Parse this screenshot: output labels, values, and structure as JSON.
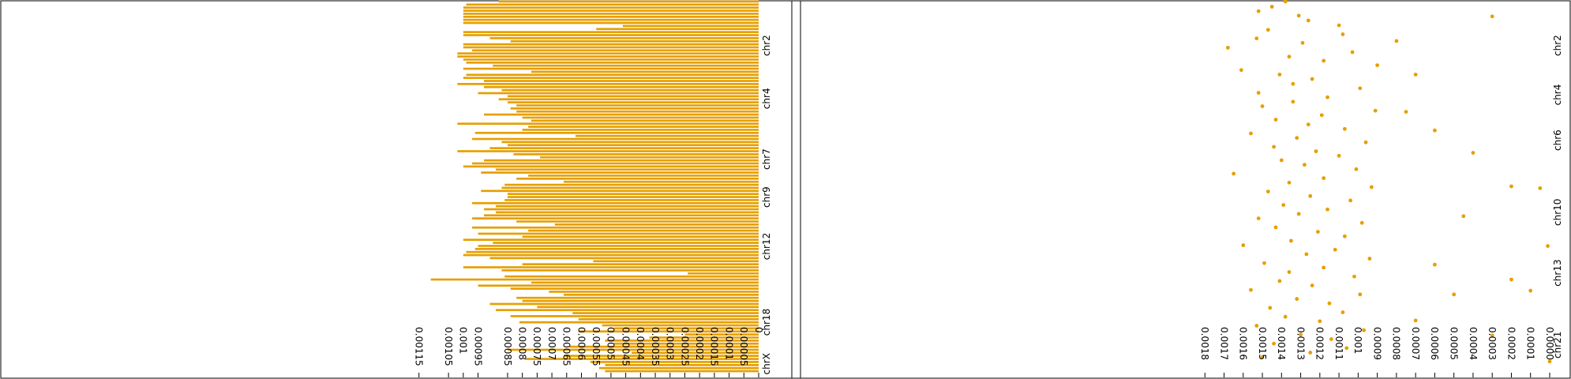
{
  "colors": {
    "accent": "#e69f00",
    "axis": "#000000",
    "background": "#ffffff"
  },
  "chart_data": [
    {
      "type": "bar",
      "orientation": "horizontal",
      "x_direction": "reversed",
      "xlabel": "",
      "ylabel": "",
      "xlim": [
        0,
        0.0012
      ],
      "xticks": [
        "0.00115",
        "0.00105",
        "0.001",
        "0.00095",
        "0.00085",
        "0.0008",
        "0.00075",
        "0.0007",
        "0.00065",
        "0.0006",
        "0.00055",
        "0.0005",
        "0.00045",
        "0.0004",
        "0.00035",
        "0.0003",
        "0.00025",
        "0.0002",
        "0.00015",
        "0.0001",
        "0.00005",
        "0"
      ],
      "xtick_values": [
        0.00115,
        0.00105,
        0.001,
        0.00095,
        0.00085,
        0.0008,
        0.00075,
        0.0007,
        0.00065,
        0.0006,
        0.00055,
        0.0005,
        0.00045,
        0.0004,
        0.00035,
        0.0003,
        0.00025,
        0.0002,
        0.00015,
        0.0001,
        5e-05,
        0
      ],
      "category_labels": [
        "chr2",
        "chr4",
        "chr7",
        "chr9",
        "chr12",
        "chr18",
        "chrX"
      ],
      "category_label_positions": [
        0.12,
        0.26,
        0.42,
        0.52,
        0.65,
        0.85,
        0.96
      ],
      "grid": false,
      "values": [
        0.00088,
        0.00099,
        0.001,
        0.001,
        0.001,
        0.001,
        0.001,
        0.001,
        0.00046,
        0.00055,
        0.001,
        0.001,
        0.00091,
        0.00084,
        0.001,
        0.001,
        0.00097,
        0.00102,
        0.00102,
        0.001,
        0.00099,
        0.0009,
        0.001,
        0.00077,
        0.00099,
        0.001,
        0.00093,
        0.00102,
        0.00093,
        0.00087,
        0.00095,
        0.00085,
        0.00088,
        0.00085,
        0.00082,
        0.00084,
        0.00082,
        0.00093,
        0.0008,
        0.00077,
        0.00102,
        0.00078,
        0.0008,
        0.00096,
        0.00062,
        0.00097,
        0.00087,
        0.00085,
        0.00091,
        0.00102,
        0.00083,
        0.00074,
        0.00093,
        0.00097,
        0.001,
        0.00089,
        0.00094,
        0.00078,
        0.00082,
        0.00066,
        0.00086,
        0.00087,
        0.00094,
        0.00085,
        0.00085,
        0.00086,
        0.00097,
        0.00089,
        0.00093,
        0.00089,
        0.00093,
        0.00097,
        0.00082,
        0.00069,
        0.00097,
        0.00078,
        0.00095,
        0.0008,
        0.001,
        0.0009,
        0.00095,
        0.00096,
        0.00099,
        0.001,
        0.00091,
        0.00056,
        0.0008,
        0.001,
        0.00087,
        0.00024,
        0.00086,
        0.00111,
        0.00077,
        0.00095,
        0.00084,
        0.00071,
        0.00066,
        0.00082,
        0.0008,
        0.00091,
        0.00075,
        0.00089,
        0.00063,
        0.00084,
        0.00061,
        0.00081,
        0.00053,
        0.00049,
        0.00061,
        0.00025,
        0.00037,
        0.00052,
        0.00049,
        0.00064,
        0.00085,
        0.00043,
        0.00066,
        0.00079,
        0.00057,
        0.00052,
        0.00054,
        0.00052
      ]
    },
    {
      "type": "scatter",
      "orientation": "horizontal",
      "x_direction": "reversed",
      "xlabel": "",
      "ylabel": "",
      "xlim": [
        0,
        0.0019
      ],
      "xticks": [
        "0.0018",
        "0.0017",
        "0.0016",
        "0.0015",
        "0.0014",
        "0.0013",
        "0.0012",
        "0.0011",
        "0.001",
        "0.0009",
        "0.0008",
        "0.0007",
        "0.0006",
        "0.0005",
        "0.0004",
        "0.0003",
        "0.0002",
        "0.0001",
        "0.0000"
      ],
      "xtick_values": [
        0.0018,
        0.0017,
        0.0016,
        0.0015,
        0.0014,
        0.0013,
        0.0012,
        0.0011,
        0.001,
        0.0009,
        0.0008,
        0.0007,
        0.0006,
        0.0005,
        0.0004,
        0.0003,
        0.0002,
        0.0001,
        0
      ],
      "category_labels": [
        "chr2",
        "chr4",
        "chr6",
        "chr10",
        "chr13",
        "chr21"
      ],
      "category_label_positions": [
        0.12,
        0.25,
        0.37,
        0.56,
        0.72,
        0.91
      ],
      "grid": false,
      "points": [
        [
          0.00138,
          0.004
        ],
        [
          0.00145,
          0.018
        ],
        [
          0.00152,
          0.03
        ],
        [
          0.00131,
          0.042
        ],
        [
          0.00126,
          0.055
        ],
        [
          0.0011,
          0.068
        ],
        [
          0.00147,
          0.08
        ],
        [
          0.00108,
          0.092
        ],
        [
          0.00153,
          0.103
        ],
        [
          0.00129,
          0.115
        ],
        [
          0.00168,
          0.128
        ],
        [
          0.00103,
          0.14
        ],
        [
          0.00136,
          0.152
        ],
        [
          0.00118,
          0.163
        ],
        [
          0.0009,
          0.175
        ],
        [
          0.00161,
          0.188
        ],
        [
          0.00141,
          0.2
        ],
        [
          0.00124,
          0.212
        ],
        [
          0.00134,
          0.225
        ],
        [
          0.00099,
          0.237
        ],
        [
          0.00152,
          0.249
        ],
        [
          0.00116,
          0.261
        ],
        [
          0.00134,
          0.273
        ],
        [
          0.0015,
          0.285
        ],
        [
          0.00091,
          0.297
        ],
        [
          0.00119,
          0.309
        ],
        [
          0.00143,
          0.321
        ],
        [
          0.00126,
          0.334
        ],
        [
          0.00107,
          0.346
        ],
        [
          0.00156,
          0.358
        ],
        [
          0.00132,
          0.37
        ],
        [
          0.00096,
          0.382
        ],
        [
          0.00144,
          0.394
        ],
        [
          0.00122,
          0.406
        ],
        [
          0.0011,
          0.418
        ],
        [
          0.0014,
          0.43
        ],
        [
          0.00128,
          0.442
        ],
        [
          0.00101,
          0.454
        ],
        [
          0.00165,
          0.466
        ],
        [
          0.00118,
          0.478
        ],
        [
          0.00136,
          0.49
        ],
        [
          0.00093,
          0.502
        ],
        [
          0.00147,
          0.514
        ],
        [
          0.00125,
          0.526
        ],
        [
          0.00104,
          0.538
        ],
        [
          0.00139,
          0.55
        ],
        [
          0.00116,
          0.562
        ],
        [
          0.00131,
          0.574
        ],
        [
          0.00152,
          0.586
        ],
        [
          0.00098,
          0.598
        ],
        [
          0.00143,
          0.61
        ],
        [
          0.00121,
          0.622
        ],
        [
          0.00107,
          0.634
        ],
        [
          0.00135,
          0.646
        ],
        [
          0.0016,
          0.658
        ],
        [
          0.00112,
          0.67
        ],
        [
          0.00127,
          0.682
        ],
        [
          0.00094,
          0.694
        ],
        [
          0.00149,
          0.706
        ],
        [
          0.00118,
          0.718
        ],
        [
          0.00136,
          0.73
        ],
        [
          0.00102,
          0.742
        ],
        [
          0.00141,
          0.754
        ],
        [
          0.00124,
          0.766
        ],
        [
          0.00156,
          0.778
        ],
        [
          0.00099,
          0.79
        ],
        [
          0.00132,
          0.802
        ],
        [
          0.00115,
          0.814
        ],
        [
          0.00146,
          0.826
        ],
        [
          0.00108,
          0.838
        ],
        [
          0.00138,
          0.85
        ],
        [
          0.0012,
          0.862
        ],
        [
          0.00153,
          0.874
        ],
        [
          0.00097,
          0.886
        ],
        [
          0.0013,
          0.898
        ],
        [
          0.00114,
          0.91
        ],
        [
          0.00144,
          0.922
        ],
        [
          0.00106,
          0.934
        ],
        [
          0.00125,
          0.946
        ],
        [
          0.0015,
          0.958
        ],
        [
          0.0003,
          0.044
        ],
        [
          0.0008,
          0.11
        ],
        [
          0.0007,
          0.2
        ],
        [
          0.00075,
          0.3
        ],
        [
          0.0006,
          0.35
        ],
        [
          0.0004,
          0.41
        ],
        [
          0.0002,
          0.5
        ],
        [
          5e-05,
          0.505
        ],
        [
          0.00045,
          0.58
        ],
        [
          1e-05,
          0.66
        ],
        [
          0.0006,
          0.71
        ],
        [
          0.0002,
          0.75
        ],
        [
          0.0005,
          0.79
        ],
        [
          0.0001,
          0.78
        ],
        [
          0.0007,
          0.86
        ],
        [
          0.0003,
          0.9
        ],
        [
          0.0,
          0.97
        ]
      ]
    }
  ]
}
